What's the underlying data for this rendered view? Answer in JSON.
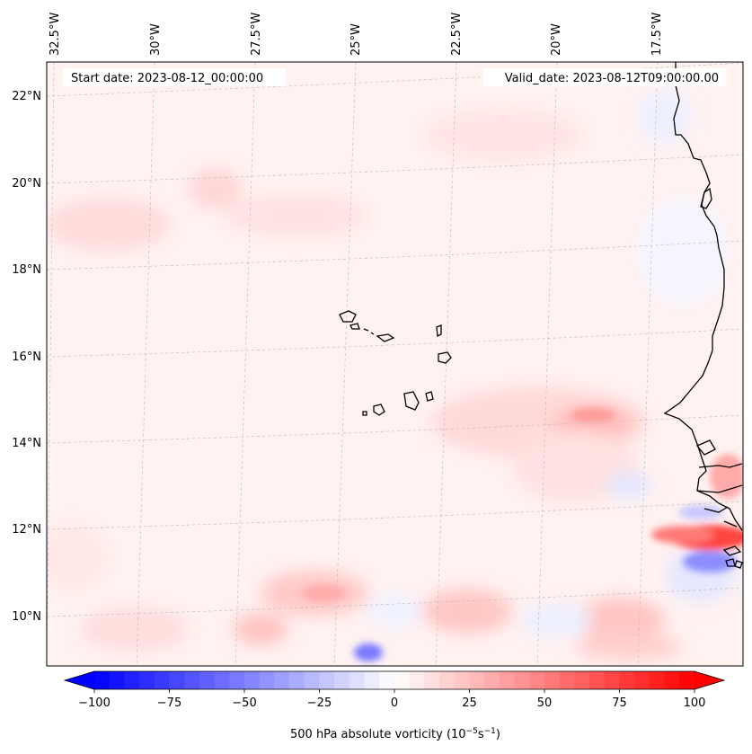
{
  "map": {
    "start_date": "Start date: 2023-08-12_00:00:00",
    "valid_date": "Valid_date: 2023-08-12T09:00:00.00",
    "lon_labels": [
      "32.5°W",
      "30°W",
      "27.5°W",
      "25°W",
      "22.5°W",
      "20°W",
      "17.5°W"
    ],
    "lat_labels": [
      "22°N",
      "20°N",
      "18°N",
      "16°N",
      "14°N",
      "12°N",
      "10°N"
    ],
    "extent": {
      "lon_min": -32.6,
      "lon_max": -15.3,
      "lat_min": 8.9,
      "lat_max": 22.8
    }
  },
  "colorbar": {
    "label": "500 hPa absolute vorticity (10",
    "unit_exp1": "−5",
    "unit_mid": "s",
    "unit_exp2": "−1",
    "unit_close": ")",
    "ticks": [
      "−100",
      "−75",
      "−50",
      "−25",
      "0",
      "25",
      "50",
      "75",
      "100"
    ],
    "min": -100,
    "max": 100,
    "step": 5,
    "colors": {
      "neg": "#0000ff",
      "mid": "#ffffff",
      "pos": "#ff0000"
    }
  }
}
